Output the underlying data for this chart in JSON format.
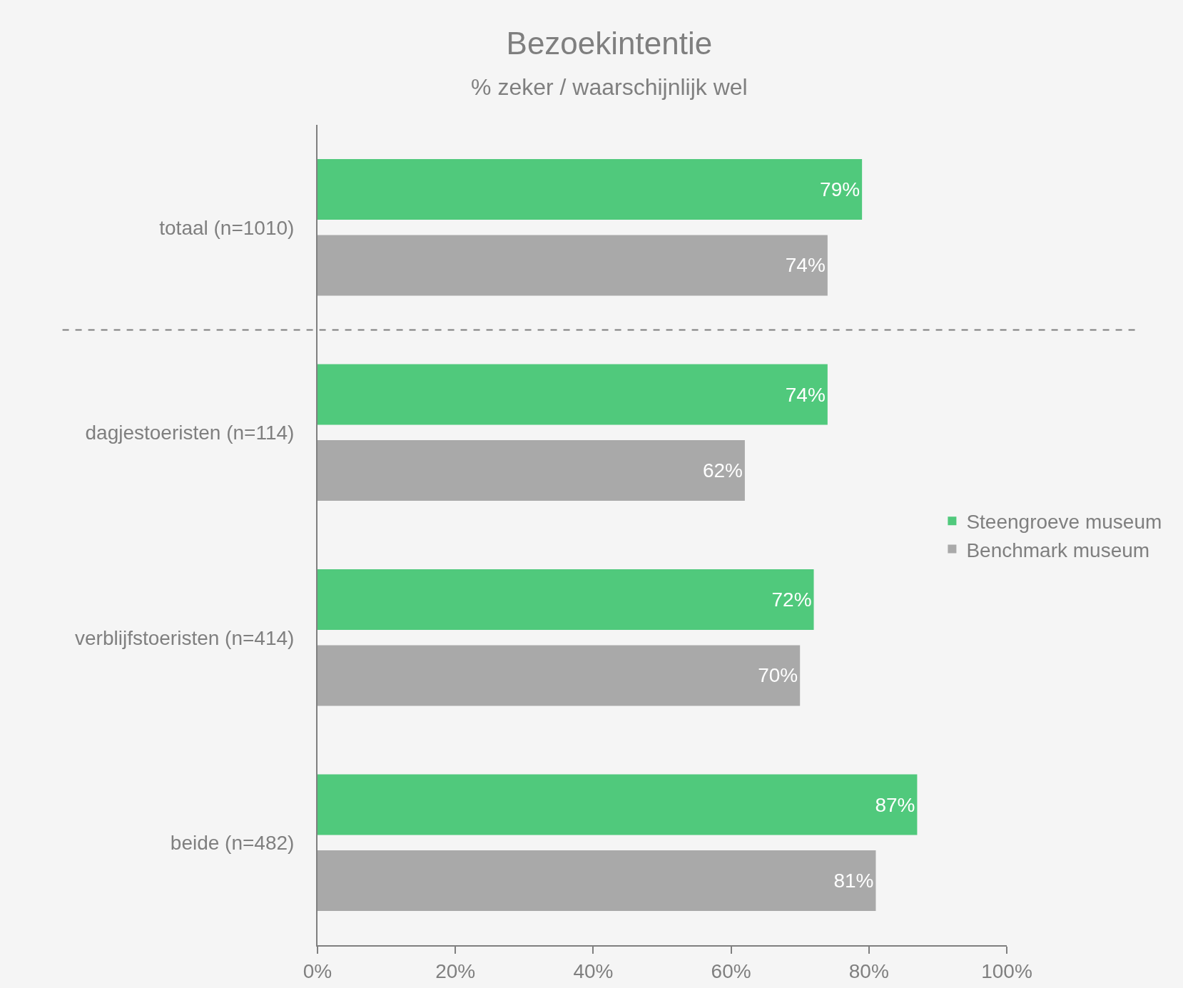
{
  "chart_data": {
    "type": "bar",
    "orientation": "horizontal",
    "title": "Bezoekintentie",
    "subtitle": "% zeker / waarschijnlijk wel",
    "categories": [
      "totaal (n=1010)",
      "dagjestoeristen (n=114)",
      "verblijfstoeristen (n=414)",
      "beide (n=482)"
    ],
    "series": [
      {
        "name": "Steengroeve museum",
        "color": "#50c97c",
        "values": [
          79,
          74,
          72,
          87
        ],
        "value_labels": [
          "79%",
          "74%",
          "72%",
          "87%"
        ]
      },
      {
        "name": "Benchmark museum",
        "color": "#a9a9a9",
        "values": [
          74,
          62,
          70,
          81
        ],
        "value_labels": [
          "74%",
          "62%",
          "70%",
          "81%"
        ]
      }
    ],
    "xlim": [
      0,
      100
    ],
    "xticks": [
      {
        "value": 0,
        "label": "0%"
      },
      {
        "value": 20,
        "label": "20%"
      },
      {
        "value": 40,
        "label": "40%"
      },
      {
        "value": 60,
        "label": "60%"
      },
      {
        "value": 80,
        "label": "80%"
      },
      {
        "value": 100,
        "label": "100%"
      }
    ],
    "grid": false,
    "legend": "right"
  }
}
